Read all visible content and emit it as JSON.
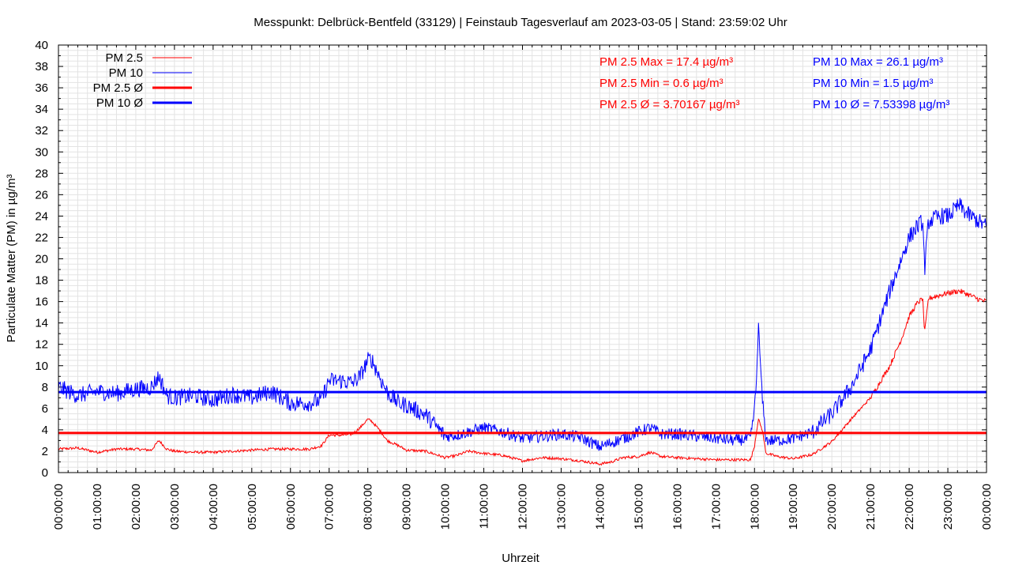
{
  "chart_data": {
    "type": "line",
    "title": "Messpunkt: Delbrück-Bentfeld (33129) | Feinstaub Tagesverlauf am 2023-03-05 | Stand: 23:59:02 Uhr",
    "xlabel": "Uhrzeit",
    "ylabel": "Particulate Matter (PM) in µg/m³",
    "ylim": [
      0,
      40
    ],
    "xlim": [
      0,
      24
    ],
    "grid": true,
    "legend_position": "top-left",
    "xtick_labels": [
      "00:00:00",
      "01:00:00",
      "02:00:00",
      "03:00:00",
      "04:00:00",
      "05:00:00",
      "06:00:00",
      "07:00:00",
      "08:00:00",
      "09:00:00",
      "10:00:00",
      "11:00:00",
      "12:00:00",
      "13:00:00",
      "14:00:00",
      "15:00:00",
      "16:00:00",
      "17:00:00",
      "18:00:00",
      "19:00:00",
      "20:00:00",
      "21:00:00",
      "22:00:00",
      "23:00:00",
      "00:00:00"
    ],
    "ytick_labels": [
      "0",
      "2",
      "4",
      "6",
      "8",
      "10",
      "12",
      "14",
      "16",
      "18",
      "20",
      "22",
      "24",
      "26",
      "28",
      "30",
      "32",
      "34",
      "36",
      "38",
      "40"
    ],
    "legend": [
      {
        "label": "PM 2.5",
        "color": "#ff0000",
        "style": "thin"
      },
      {
        "label": "PM 10",
        "color": "#0000ff",
        "style": "thin"
      },
      {
        "label": "PM 2.5 Ø",
        "color": "#ff0000",
        "style": "thick"
      },
      {
        "label": "PM 10 Ø",
        "color": "#0000ff",
        "style": "thick"
      }
    ],
    "annotations": {
      "pm25": [
        "PM 2.5 Max = 17.4 µg/m³",
        "PM 2.5 Min = 0.6 µg/m³",
        "PM 2.5 Ø = 3.70167 µg/m³"
      ],
      "pm10": [
        "PM 10 Max = 26.1 µg/m³",
        "PM 10 Min = 1.5 µg/m³",
        "PM 10 Ø = 7.53398 µg/m³"
      ]
    },
    "averages": {
      "pm25": 3.70167,
      "pm10": 7.53398
    },
    "series": [
      {
        "name": "PM 2.5",
        "color": "#ff0000",
        "x": [
          0,
          0.5,
          1,
          1.5,
          2,
          2.4,
          2.6,
          2.8,
          3,
          3.5,
          4,
          4.5,
          5,
          5.5,
          6,
          6.5,
          6.8,
          7,
          7.3,
          7.6,
          7.8,
          8,
          8.1,
          8.3,
          8.5,
          8.8,
          9,
          9.5,
          10,
          10.3,
          10.6,
          11,
          11.5,
          12,
          12.5,
          13,
          13.5,
          14,
          14.3,
          14.6,
          15,
          15.3,
          15.6,
          16,
          16.5,
          17,
          17.5,
          17.9,
          18,
          18.05,
          18.1,
          18.2,
          18.3,
          18.6,
          19,
          19.5,
          20,
          20.5,
          21,
          21.5,
          21.8,
          22,
          22.2,
          22.35,
          22.4,
          22.5,
          22.8,
          23,
          23.3,
          23.5,
          23.8,
          24
        ],
        "y": [
          2.2,
          2.3,
          1.9,
          2.2,
          2.2,
          2.1,
          3.0,
          2.2,
          2.0,
          1.9,
          1.9,
          2.0,
          2.1,
          2.2,
          2.2,
          2.2,
          2.5,
          3.5,
          3.5,
          3.6,
          4.2,
          5.0,
          4.8,
          4.0,
          3.0,
          2.5,
          2.1,
          2.0,
          1.4,
          1.6,
          2.0,
          1.8,
          1.6,
          1.1,
          1.4,
          1.3,
          1.1,
          0.8,
          1.0,
          1.4,
          1.5,
          1.9,
          1.5,
          1.4,
          1.3,
          1.2,
          1.2,
          1.2,
          2.5,
          3.8,
          5.0,
          4.0,
          1.8,
          1.5,
          1.3,
          1.7,
          2.9,
          5.0,
          7.0,
          10.0,
          12.5,
          14.6,
          15.8,
          16.3,
          13.0,
          16.3,
          16.6,
          16.8,
          17.0,
          16.7,
          16.2,
          16.0
        ]
      },
      {
        "name": "PM 10",
        "color": "#0000ff",
        "x": [
          0,
          0.5,
          1,
          1.5,
          2,
          2.4,
          2.6,
          2.8,
          3,
          3.5,
          4,
          4.5,
          5,
          5.5,
          6,
          6.5,
          6.8,
          7,
          7.3,
          7.6,
          7.8,
          8,
          8.1,
          8.3,
          8.5,
          8.8,
          9,
          9.5,
          10,
          10.3,
          10.6,
          11,
          11.5,
          12,
          12.5,
          13,
          13.5,
          14,
          14.3,
          14.6,
          15,
          15.3,
          15.6,
          16,
          16.5,
          17,
          17.5,
          17.9,
          18,
          18.05,
          18.1,
          18.2,
          18.3,
          18.6,
          19,
          19.5,
          20,
          20.5,
          21,
          21.5,
          21.8,
          22,
          22.2,
          22.35,
          22.4,
          22.5,
          22.8,
          23,
          23.3,
          23.5,
          23.8,
          24
        ],
        "y": [
          8.0,
          7.2,
          7.6,
          7.4,
          7.8,
          8.0,
          9.0,
          7.2,
          7.0,
          7.2,
          6.8,
          7.3,
          7.0,
          7.6,
          6.5,
          6.5,
          6.8,
          8.6,
          8.6,
          8.4,
          9.0,
          10.5,
          10.6,
          9.0,
          7.5,
          6.5,
          6.3,
          5.4,
          3.4,
          3.5,
          3.8,
          4.2,
          3.8,
          3.2,
          3.4,
          3.6,
          3.3,
          2.4,
          2.8,
          3.2,
          3.8,
          4.2,
          3.6,
          3.6,
          3.4,
          3.2,
          3.0,
          3.2,
          6.0,
          8.5,
          13.8,
          7.0,
          3.0,
          3.0,
          3.2,
          3.8,
          5.5,
          8.0,
          11.5,
          17.0,
          20.0,
          22.0,
          23.0,
          23.5,
          19.0,
          23.5,
          24.0,
          24.0,
          25.0,
          24.2,
          23.5,
          23.0
        ]
      }
    ]
  }
}
